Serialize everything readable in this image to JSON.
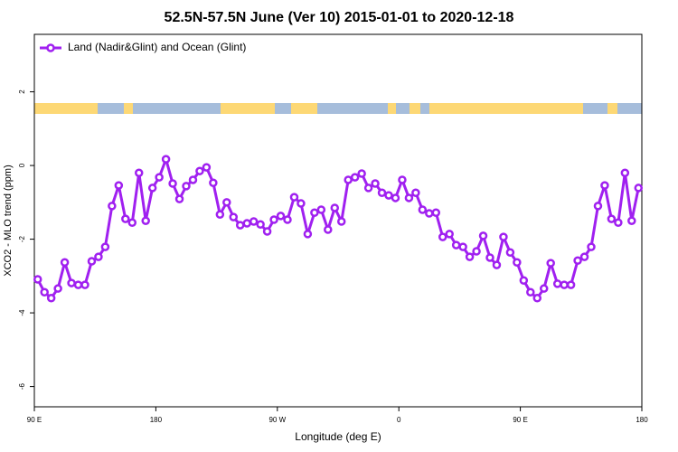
{
  "chart_data": {
    "type": "line",
    "title": "52.5N-57.5N June (Ver 10)   2015-01-01 to 2020-12-18",
    "x_label": "Longitude (deg E)",
    "y_label": "XCO2 - MLO trend (ppm)",
    "legend_position": "top-left",
    "xlim": [
      90,
      540
    ],
    "ylim": [
      -6.55,
      3.56
    ],
    "xticks": [
      {
        "value": 90,
        "label": "90 E"
      },
      180,
      {
        "value": 270,
        "label": "90 W"
      },
      {
        "value": 360,
        "label": "0"
      },
      {
        "value": 450,
        "label": "90 E"
      },
      {
        "value": 540,
        "label": "180"
      }
    ],
    "yticks": [
      -6,
      -4,
      -2,
      0,
      2
    ],
    "x": [
      92.5,
      97.5,
      102.5,
      107.5,
      112.5,
      117.5,
      122.5,
      127.5,
      132.5,
      137.5,
      142.5,
      147.5,
      152.5,
      157.5,
      162.5,
      167.5,
      172.5,
      177.5,
      182.5,
      187.5,
      192.5,
      197.5,
      202.5,
      207.5,
      212.5,
      217.5,
      222.5,
      227.5,
      232.5,
      237.5,
      242.5,
      247.5,
      252.5,
      257.5,
      262.5,
      267.5,
      272.5,
      277.5,
      282.5,
      287.5,
      292.5,
      297.5,
      302.5,
      307.5,
      312.5,
      317.5,
      322.5,
      327.5,
      332.5,
      337.5,
      342.5,
      347.5,
      352.5,
      357.5,
      362.5,
      367.5,
      372.5,
      377.5,
      382.5,
      387.5,
      392.5,
      397.5,
      402.5,
      407.5,
      412.5,
      417.5,
      422.5,
      427.5,
      432.5,
      437.5,
      442.5,
      447.5,
      452.5,
      457.5,
      462.5,
      467.5,
      472.5,
      477.5,
      482.5,
      487.5,
      492.5,
      497.5,
      502.5,
      507.5,
      512.5,
      517.5,
      522.5,
      527.5,
      532.5,
      537.5
    ],
    "series": [
      {
        "name": "Land (Nadir&Glint) and Ocean (Glint)",
        "color": "#a020f0",
        "values": [
          -3.09,
          -3.44,
          -3.6,
          -3.34,
          -2.63,
          -3.19,
          -3.24,
          -3.24,
          -2.6,
          -2.48,
          -2.21,
          -1.1,
          -0.54,
          -1.45,
          -1.55,
          -0.2,
          -1.5,
          -0.61,
          -0.32,
          0.17,
          -0.49,
          -0.91,
          -0.56,
          -0.39,
          -0.15,
          -0.05,
          -0.47,
          -1.33,
          -1.0,
          -1.4,
          -1.62,
          -1.57,
          -1.52,
          -1.6,
          -1.79,
          -1.47,
          -1.37,
          -1.47,
          -0.86,
          -1.03,
          -1.86,
          -1.28,
          -1.2,
          -1.74,
          -1.15,
          -1.52,
          -0.39,
          -0.32,
          -0.22,
          -0.61,
          -0.49,
          -0.74,
          -0.81,
          -0.88,
          -0.39,
          -0.88,
          -0.74,
          -1.2,
          -1.3,
          -1.28,
          -1.94,
          -1.86,
          -2.16,
          -2.21,
          -2.48,
          -2.33,
          -1.91,
          -2.5,
          -2.7,
          -1.94,
          -2.36,
          -2.63,
          -3.12,
          -3.44,
          -3.6,
          -3.34,
          -2.65,
          -3.21,
          -3.24,
          -3.24,
          -2.58,
          -2.48,
          -2.21,
          -1.1,
          -0.54,
          -1.45,
          -1.55,
          -0.2,
          -1.5,
          -0.61
        ]
      }
    ]
  }
}
